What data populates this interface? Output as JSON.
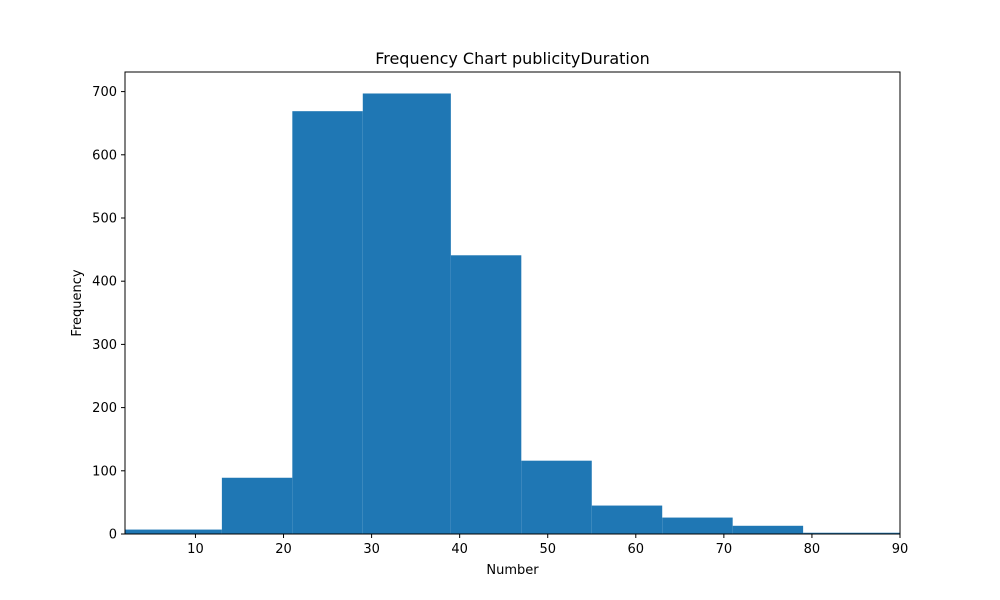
{
  "chart_data": {
    "type": "bar",
    "subtype": "histogram",
    "title": "Frequency Chart publicityDuration",
    "xlabel": "Number",
    "ylabel": "Frequency",
    "xlim": [
      2,
      90
    ],
    "ylim": [
      0,
      731
    ],
    "xticks": [
      10,
      20,
      30,
      40,
      50,
      60,
      70,
      80,
      90
    ],
    "yticks": [
      0,
      100,
      200,
      300,
      400,
      500,
      600,
      700
    ],
    "bar_color": "#1f77b4",
    "bins": [
      {
        "x0": 2,
        "x1": 13,
        "value": 7
      },
      {
        "x0": 13,
        "x1": 21,
        "value": 89
      },
      {
        "x0": 21,
        "x1": 29,
        "value": 669
      },
      {
        "x0": 29,
        "x1": 39,
        "value": 697
      },
      {
        "x0": 39,
        "x1": 47,
        "value": 441
      },
      {
        "x0": 47,
        "x1": 55,
        "value": 116
      },
      {
        "x0": 55,
        "x1": 63,
        "value": 45
      },
      {
        "x0": 63,
        "x1": 71,
        "value": 26
      },
      {
        "x0": 71,
        "x1": 79,
        "value": 13
      },
      {
        "x0": 79,
        "x1": 90,
        "value": 2
      }
    ],
    "grid": false,
    "legend": "none"
  }
}
